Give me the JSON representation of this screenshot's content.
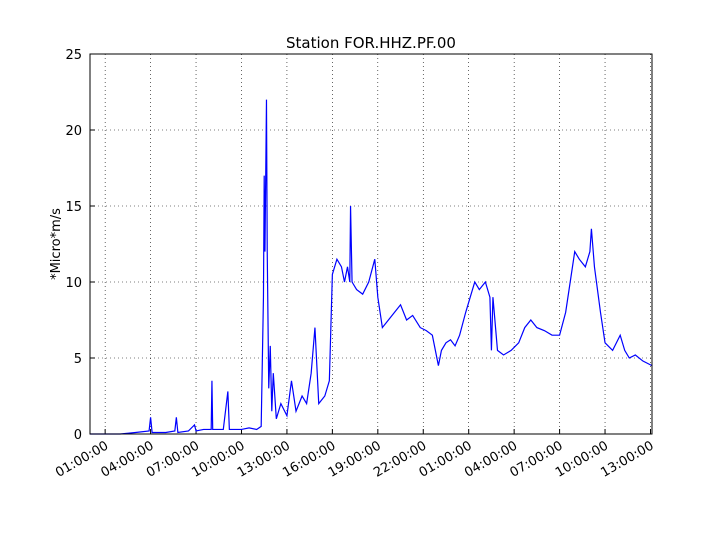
{
  "chart_data": {
    "type": "line",
    "title": "Station FOR.HHZ.PF.00",
    "y_label": "*Micro*m/s",
    "x": [
      0,
      1,
      2,
      3,
      3.9,
      4,
      4.1,
      5,
      5.6,
      5.7,
      5.8,
      6.5,
      6.9,
      7,
      7.5,
      8,
      8.05,
      8.1,
      8.8,
      9.1,
      9.2,
      10,
      10.5,
      11,
      11.3,
      11.45,
      11.5,
      11.55,
      11.65,
      11.7,
      11.8,
      11.9,
      12,
      12.1,
      12.3,
      12.6,
      13,
      13.3,
      13.6,
      14,
      14.3,
      14.6,
      14.85,
      15.1,
      15.5,
      15.8,
      16,
      16.3,
      16.6,
      16.8,
      17,
      17.15,
      17.2,
      17.3,
      17.6,
      18,
      18.4,
      18.8,
      19,
      19.3,
      19.7,
      20.1,
      20.5,
      20.9,
      21.3,
      21.8,
      22.2,
      22.6,
      23,
      23.2,
      23.5,
      23.8,
      24.1,
      24.4,
      24.8,
      25.1,
      25.4,
      25.7,
      26.1,
      26.4,
      26.5,
      26.6,
      26.9,
      27.3,
      27.8,
      28.3,
      28.7,
      29.1,
      29.5,
      30,
      30.5,
      31,
      31.4,
      31.7,
      32,
      32.3,
      32.7,
      33,
      33.1,
      33.3,
      33.7,
      34,
      34.5,
      35,
      35.3,
      35.6,
      36,
      36.5,
      37.1
    ],
    "values": [
      0,
      0,
      0,
      0.1,
      0.2,
      1.1,
      0.1,
      0.1,
      0.2,
      1.1,
      0.1,
      0.2,
      0.6,
      0.2,
      0.3,
      0.3,
      3.5,
      0.3,
      0.3,
      2.8,
      0.3,
      0.3,
      0.4,
      0.3,
      0.5,
      9,
      17,
      12,
      22,
      12,
      3,
      5.8,
      1.5,
      4,
      1,
      2,
      1.2,
      3.5,
      1.5,
      2.5,
      2,
      4,
      7,
      2,
      2.5,
      3.5,
      10.5,
      11.5,
      11,
      10,
      11,
      10,
      15,
      10,
      9.5,
      9.2,
      10,
      11.5,
      9,
      7,
      7.5,
      8,
      8.5,
      7.5,
      7.8,
      7,
      6.8,
      6.5,
      4.5,
      5.5,
      6,
      6.2,
      5.8,
      6.5,
      8,
      9,
      10,
      9.5,
      10,
      9,
      5.5,
      9,
      5.5,
      5.2,
      5.5,
      6,
      7,
      7.5,
      7,
      6.8,
      6.5,
      6.5,
      8,
      10,
      12,
      11.5,
      11,
      12,
      13.5,
      11,
      8,
      6,
      5.5,
      6.5,
      5.5,
      5,
      5.2,
      4.8,
      4.5
    ],
    "color": "#0000ff",
    "xlim": [
      0,
      37.1
    ],
    "xticks": [
      {
        "value": 1,
        "label": "01:00:00"
      },
      {
        "value": 4,
        "label": "04:00:00"
      },
      {
        "value": 7,
        "label": "07:00:00"
      },
      {
        "value": 10,
        "label": "10:00:00"
      },
      {
        "value": 13,
        "label": "13:00:00"
      },
      {
        "value": 16,
        "label": "16:00:00"
      },
      {
        "value": 19,
        "label": "19:00:00"
      },
      {
        "value": 22,
        "label": "22:00:00"
      },
      {
        "value": 25,
        "label": "01:00:00"
      },
      {
        "value": 28,
        "label": "04:00:00"
      },
      {
        "value": 31,
        "label": "07:00:00"
      },
      {
        "value": 34,
        "label": "10:00:00"
      },
      {
        "value": 37,
        "label": "13:00:00"
      }
    ],
    "ylim": [
      0,
      25
    ],
    "yticks": [
      0,
      5,
      10,
      15,
      20,
      25
    ],
    "grid": true
  }
}
